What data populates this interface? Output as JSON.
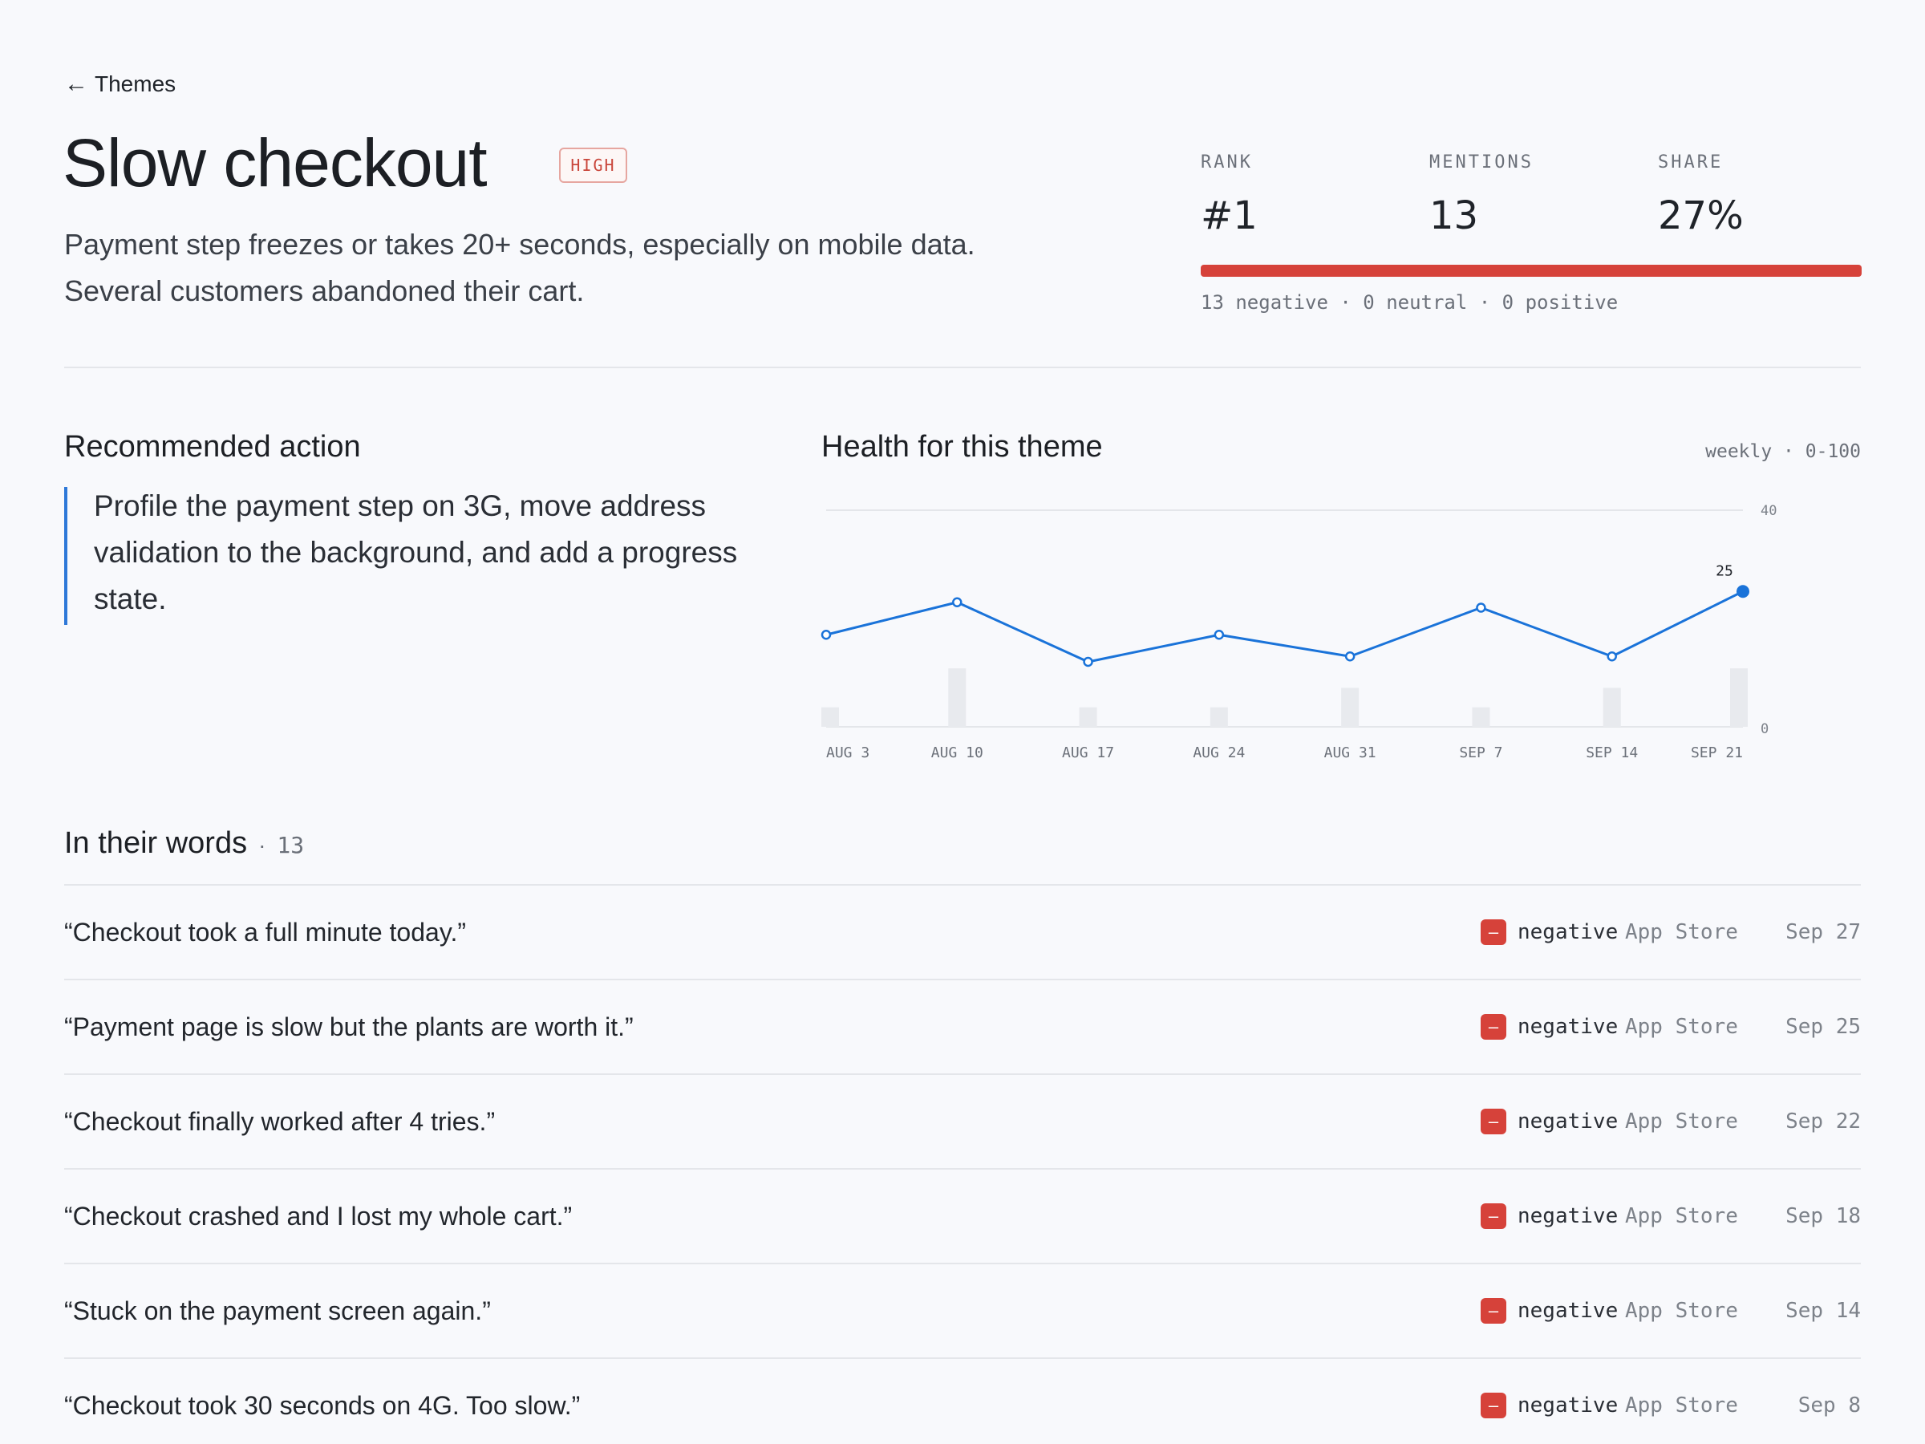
{
  "nav": {
    "back_arrow": "←",
    "back_label": "Themes"
  },
  "header": {
    "title": "Slow checkout",
    "priority": "HIGH",
    "description": "Payment step freezes or takes 20+ seconds, especially on mobile data. Several customers abandoned their cart."
  },
  "stats": {
    "rank_label": "RANK",
    "rank": "#1",
    "mentions_label": "MENTIONS",
    "mentions": "13",
    "share_label": "SHARE",
    "share": "27%",
    "negative_fraction": 1.0,
    "sentiment_summary": "13 negative · 0 neutral · 0 positive"
  },
  "action": {
    "heading": "Recommended action",
    "text": "Profile the payment step on 3G, move address validation to the background, and add a progress state."
  },
  "chart_panel": {
    "heading": "Health for this theme",
    "meta": "weekly · 0-100"
  },
  "chart_data": {
    "type": "line",
    "categories": [
      "AUG 3",
      "AUG 10",
      "AUG 17",
      "AUG 24",
      "AUG 31",
      "SEP 7",
      "SEP 14",
      "SEP 21"
    ],
    "series": [
      {
        "values": [
          17,
          23,
          12,
          17,
          13,
          22,
          13,
          25
        ]
      },
      {
        "values": [
          1,
          3,
          1,
          1,
          2,
          1,
          2,
          3
        ]
      }
    ],
    "ylim": [
      0,
      40
    ],
    "y_ticks": [
      "0",
      "40"
    ],
    "last_label": "25",
    "colors": {
      "line": "#1a73d9",
      "bars": "#e8eaee",
      "grid": "#e4e6ea"
    }
  },
  "words": {
    "heading": "In their words",
    "separator": "·",
    "count": "13",
    "sentiment_icon": "–",
    "rows": [
      {
        "quote": "“Checkout took a full minute today.”",
        "sentiment": "negative",
        "source": "App Store",
        "date": "Sep 27"
      },
      {
        "quote": "“Payment page is slow but the plants are worth it.”",
        "sentiment": "negative",
        "source": "App Store",
        "date": "Sep 25"
      },
      {
        "quote": "“Checkout finally worked after 4 tries.”",
        "sentiment": "negative",
        "source": "App Store",
        "date": "Sep 22"
      },
      {
        "quote": "“Checkout crashed and I lost my whole cart.”",
        "sentiment": "negative",
        "source": "App Store",
        "date": "Sep 18"
      },
      {
        "quote": "“Stuck on the payment screen again.”",
        "sentiment": "negative",
        "source": "App Store",
        "date": "Sep 14"
      },
      {
        "quote": "“Checkout took 30 seconds on 4G. Too slow.”",
        "sentiment": "negative",
        "source": "App Store",
        "date": "Sep 8"
      }
    ]
  }
}
